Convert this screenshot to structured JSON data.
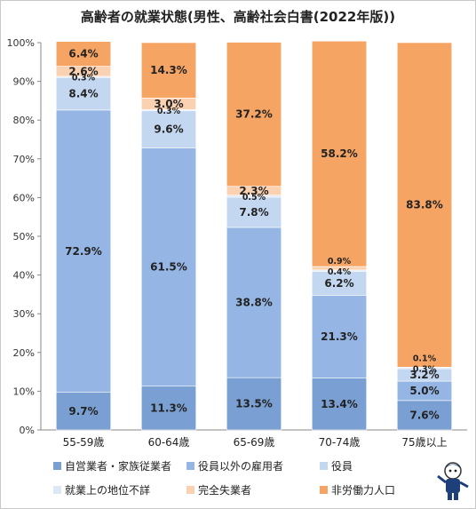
{
  "chart_data": {
    "type": "bar",
    "stacked": true,
    "title": "高齢者の就業状態(男性、高齢社会白書(2022年版))",
    "categories": [
      "55-59歳",
      "60-64歳",
      "65-69歳",
      "70-74歳",
      "75歳以上"
    ],
    "series": [
      {
        "name": "自営業者・家族従業者",
        "color": "#7a9fd2",
        "values": [
          9.7,
          11.3,
          13.5,
          13.4,
          7.6
        ],
        "labels": [
          "9.7%",
          "11.3%",
          "13.5%",
          "13.4%",
          "7.6%"
        ]
      },
      {
        "name": "役員以外の雇用者",
        "color": "#95b6e4",
        "values": [
          72.9,
          61.5,
          38.8,
          21.3,
          5.0
        ],
        "labels": [
          "72.9%",
          "61.5%",
          "38.8%",
          "21.3%",
          "5.0%"
        ]
      },
      {
        "name": "役員",
        "color": "#c4d7f0",
        "values": [
          8.4,
          9.6,
          7.8,
          6.2,
          3.2
        ],
        "labels": [
          "8.4%",
          "9.6%",
          "7.8%",
          "6.2%",
          "3.2%"
        ]
      },
      {
        "name": "就業上の地位不詳",
        "color": "#dde8f5",
        "values": [
          0.3,
          0.3,
          0.5,
          0.4,
          0.3
        ],
        "labels": [
          "0.3%",
          "0.3%",
          "0.5%",
          "0.4%",
          "0.3%"
        ]
      },
      {
        "name": "完全失業者",
        "color": "#fbd2b1",
        "values": [
          2.6,
          3.0,
          2.3,
          0.9,
          0.1
        ],
        "labels": [
          "2.6%",
          "3.0%",
          "2.3%",
          "0.9%",
          "0.1%"
        ]
      },
      {
        "name": "非労働力人口",
        "color": "#f6a463",
        "values": [
          6.4,
          14.3,
          37.2,
          58.2,
          83.8
        ],
        "labels": [
          "6.4%",
          "14.3%",
          "37.2%",
          "58.2%",
          "83.8%"
        ]
      }
    ],
    "y_ticks": [
      "0%",
      "10%",
      "20%",
      "30%",
      "40%",
      "50%",
      "60%",
      "70%",
      "80%",
      "90%",
      "100%"
    ],
    "ylim": [
      0,
      100
    ],
    "grid": false,
    "legend_position": "bottom"
  }
}
